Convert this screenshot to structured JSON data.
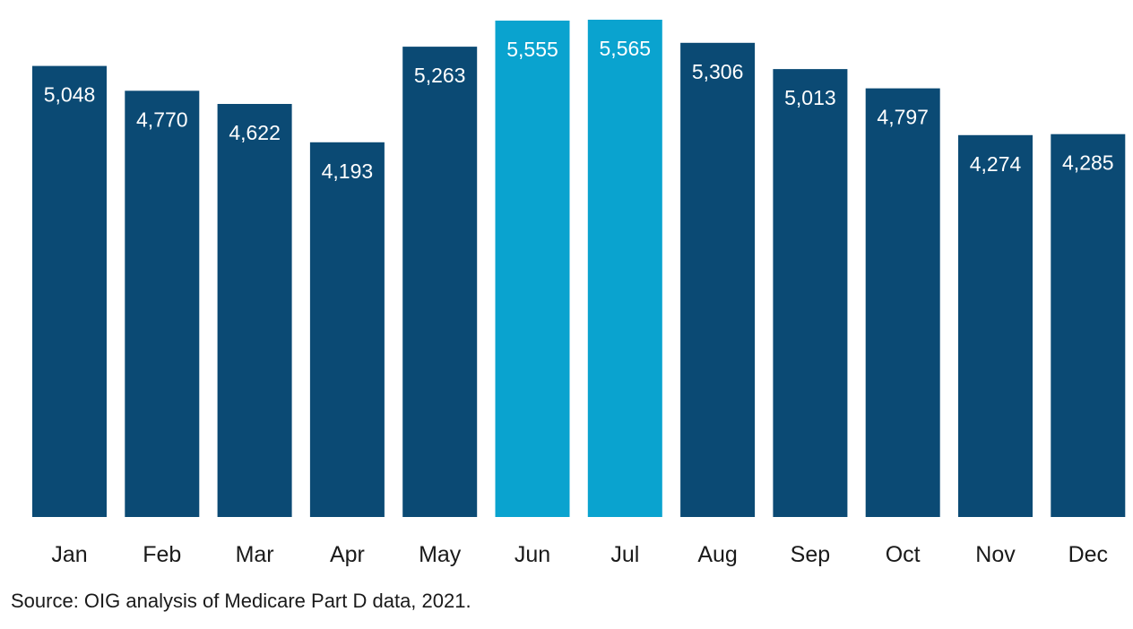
{
  "chart_data": {
    "type": "bar",
    "title": "",
    "xlabel": "",
    "ylabel": "",
    "categories": [
      "Jan",
      "Feb",
      "Mar",
      "Apr",
      "May",
      "Jun",
      "Jul",
      "Aug",
      "Sep",
      "Oct",
      "Nov",
      "Dec"
    ],
    "values": [
      5048,
      4770,
      4622,
      4193,
      5263,
      5555,
      5565,
      5306,
      5013,
      4797,
      4274,
      4285
    ],
    "data_labels": [
      "5,048",
      "4,770",
      "4,622",
      "4,193",
      "5,263",
      "5,555",
      "5,565",
      "5,306",
      "5,013",
      "4,797",
      "4,274",
      "4,285"
    ],
    "highlighted": [
      "Jun",
      "Jul"
    ],
    "ylim": [
      0,
      5565
    ],
    "grid": false,
    "legend": "none"
  },
  "colors": {
    "bar": "#0b4a74",
    "highlight": "#0aa3cf",
    "data_label": "#ffffff",
    "tick_label": "#1a1a1a"
  },
  "source_note": "Source: OIG analysis of Medicare Part D data, 2021."
}
